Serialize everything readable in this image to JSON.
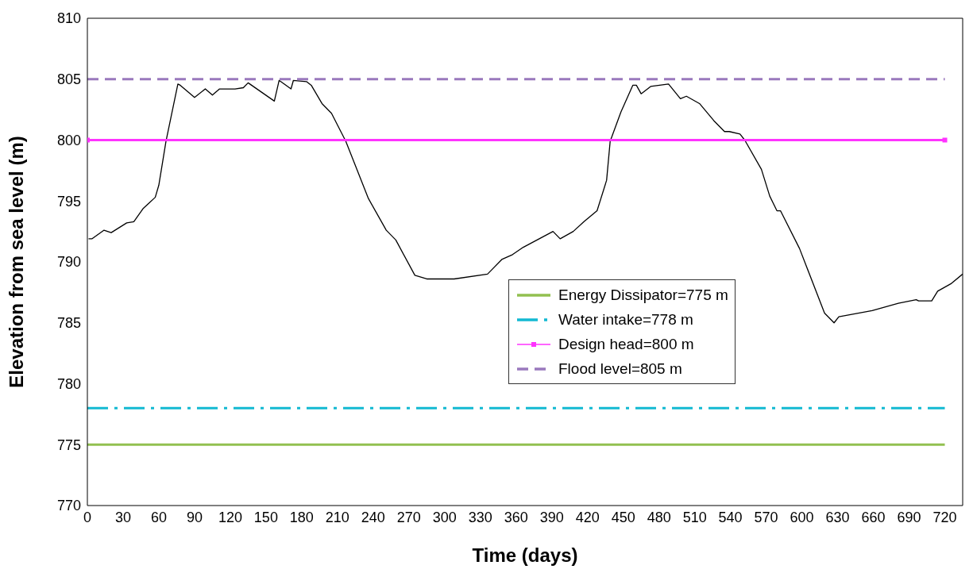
{
  "chart_data": {
    "type": "line",
    "xlabel": "Time (days)",
    "ylabel": "Elevation  from sea level (m)",
    "xlim": [
      0,
      735
    ],
    "xticks": [
      0,
      30,
      60,
      90,
      120,
      150,
      180,
      210,
      240,
      270,
      300,
      330,
      360,
      390,
      420,
      450,
      480,
      510,
      540,
      570,
      600,
      630,
      660,
      690,
      720
    ],
    "ylim": [
      770,
      810
    ],
    "yticks": [
      770,
      775,
      780,
      785,
      790,
      795,
      800,
      805,
      810
    ],
    "legend": "center right",
    "marker": "none",
    "line_style": "solid",
    "series": [
      {
        "color": "#000000",
        "x": [
          1,
          4,
          14,
          20,
          33,
          39,
          47,
          57,
          60,
          66,
          76,
          78,
          90,
          99,
          105,
          111,
          124,
          131,
          135,
          157,
          161,
          171,
          173,
          184,
          188,
          197,
          205,
          217,
          236,
          251,
          259,
          275,
          285,
          308,
          336,
          348,
          357,
          366,
          391,
          397,
          408,
          417,
          428,
          436,
          439,
          448,
          458,
          461,
          465,
          473,
          488,
          498,
          503,
          514,
          526,
          535,
          539,
          548,
          552,
          566,
          573,
          579,
          582,
          598,
          619,
          627,
          631,
          659,
          681,
          696,
          698,
          709,
          714,
          725,
          735
        ],
        "values": [
          791.9,
          791.9,
          792.6,
          792.4,
          793.2,
          793.3,
          794.4,
          795.3,
          796.3,
          799.9,
          804.6,
          804.5,
          803.5,
          804.2,
          803.7,
          804.2,
          804.2,
          804.3,
          804.7,
          803.2,
          804.9,
          804.2,
          804.9,
          804.8,
          804.5,
          803.0,
          802.2,
          799.9,
          795.2,
          792.6,
          791.8,
          788.9,
          788.6,
          788.6,
          789.0,
          790.2,
          790.6,
          791.2,
          792.5,
          791.9,
          792.5,
          793.3,
          794.2,
          796.7,
          799.9,
          802.3,
          804.5,
          804.5,
          803.8,
          804.4,
          804.6,
          803.4,
          803.6,
          803.0,
          801.6,
          800.7,
          800.7,
          800.5,
          800.0,
          797.6,
          795.4,
          794.2,
          794.2,
          791.1,
          785.8,
          785.0,
          785.5,
          786.0,
          786.6,
          786.9,
          786.8,
          786.8,
          787.6,
          788.2,
          789.0
        ]
      },
      {
        "name": "Energy Dissipator=775 m",
        "color": "#92c050",
        "x": [
          0,
          720
        ],
        "values": [
          775,
          775
        ]
      },
      {
        "name": "Water intake=778 m",
        "color": "#13b9d2",
        "line_style": "dashdot",
        "x": [
          0,
          720
        ],
        "values": [
          778,
          778
        ]
      },
      {
        "name": "Design head=800 m",
        "color": "#ff33ff",
        "marker": "square",
        "x": [
          0,
          720
        ],
        "values": [
          800,
          800
        ]
      },
      {
        "name": "Flood level=805 m",
        "color": "#9a79bd",
        "line_style": "dashed",
        "x": [
          0,
          720
        ],
        "values": [
          805,
          805
        ]
      }
    ]
  }
}
